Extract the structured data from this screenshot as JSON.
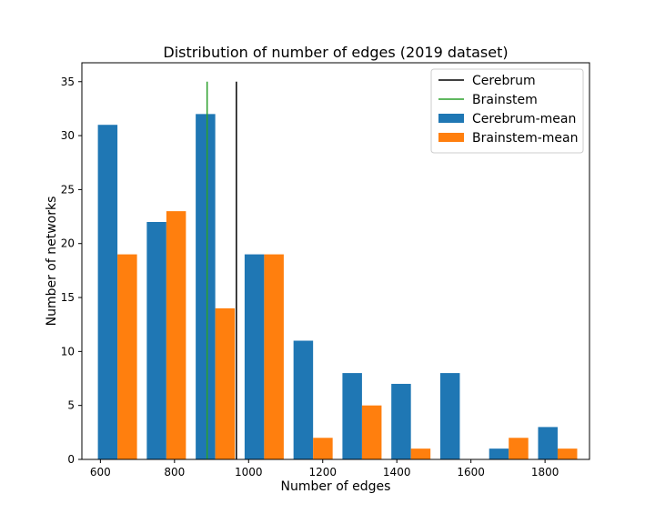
{
  "chart_data": {
    "type": "bar",
    "title": "Distribution of number of edges (2019 dataset)",
    "xlabel": "Number of edges",
    "ylabel": "Number of networks",
    "xlim": [
      550,
      1920
    ],
    "ylim": [
      0,
      36.75
    ],
    "x_ticks": [
      600,
      800,
      1000,
      1200,
      1400,
      1600,
      1800
    ],
    "y_ticks": [
      0,
      5,
      10,
      15,
      20,
      25,
      30,
      35
    ],
    "bin_edges": [
      580,
      712,
      844,
      976,
      1108,
      1240,
      1372,
      1504,
      1636,
      1768,
      1900
    ],
    "series": [
      {
        "name": "Cerebrum-mean",
        "color": "#1f77b4",
        "values": [
          31,
          22,
          32,
          19,
          11,
          8,
          7,
          8,
          1,
          3
        ]
      },
      {
        "name": "Brainstem-mean",
        "color": "#ff7f0e",
        "values": [
          19,
          23,
          14,
          19,
          2,
          5,
          1,
          0,
          2,
          1
        ]
      }
    ],
    "vlines": [
      {
        "name": "Cerebrum",
        "x": 967,
        "y_top": 35,
        "color": "#000000"
      },
      {
        "name": "Brainstem",
        "x": 888,
        "y_top": 35,
        "color": "#2ca02c"
      }
    ],
    "legend": {
      "position": "top-right",
      "entries": [
        {
          "label": "Cerebrum",
          "kind": "line",
          "color": "#000000"
        },
        {
          "label": "Brainstem",
          "kind": "line",
          "color": "#2ca02c"
        },
        {
          "label": "Cerebrum-mean",
          "kind": "patch",
          "color": "#1f77b4"
        },
        {
          "label": "Brainstem-mean",
          "kind": "patch",
          "color": "#ff7f0e"
        }
      ]
    },
    "grid": false
  }
}
